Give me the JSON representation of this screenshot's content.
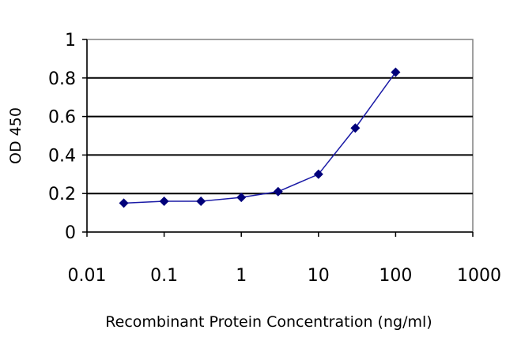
{
  "chart_data": {
    "type": "line",
    "x_scale": "log",
    "xlabel": "Recombinant Protein Concentration (ng/ml)",
    "ylabel": "OD 450",
    "xlim": [
      0.01,
      1000
    ],
    "ylim": [
      0,
      1
    ],
    "x_ticks": [
      "0.01",
      "0.1",
      "1",
      "10",
      "100",
      "1000"
    ],
    "y_ticks": [
      "0",
      "0.2",
      "0.4",
      "0.6",
      "0.8",
      "1"
    ],
    "grid": "horizontal",
    "legend": "none",
    "series": [
      {
        "color": "#1a1aa6",
        "marker_color": "#00007a",
        "marker": "diamond",
        "points": [
          {
            "x": 0.03,
            "y": 0.15
          },
          {
            "x": 0.1,
            "y": 0.16
          },
          {
            "x": 0.3,
            "y": 0.16
          },
          {
            "x": 1,
            "y": 0.18
          },
          {
            "x": 3,
            "y": 0.21
          },
          {
            "x": 10,
            "y": 0.3
          },
          {
            "x": 30,
            "y": 0.54
          },
          {
            "x": 100,
            "y": 0.83
          }
        ]
      }
    ]
  }
}
